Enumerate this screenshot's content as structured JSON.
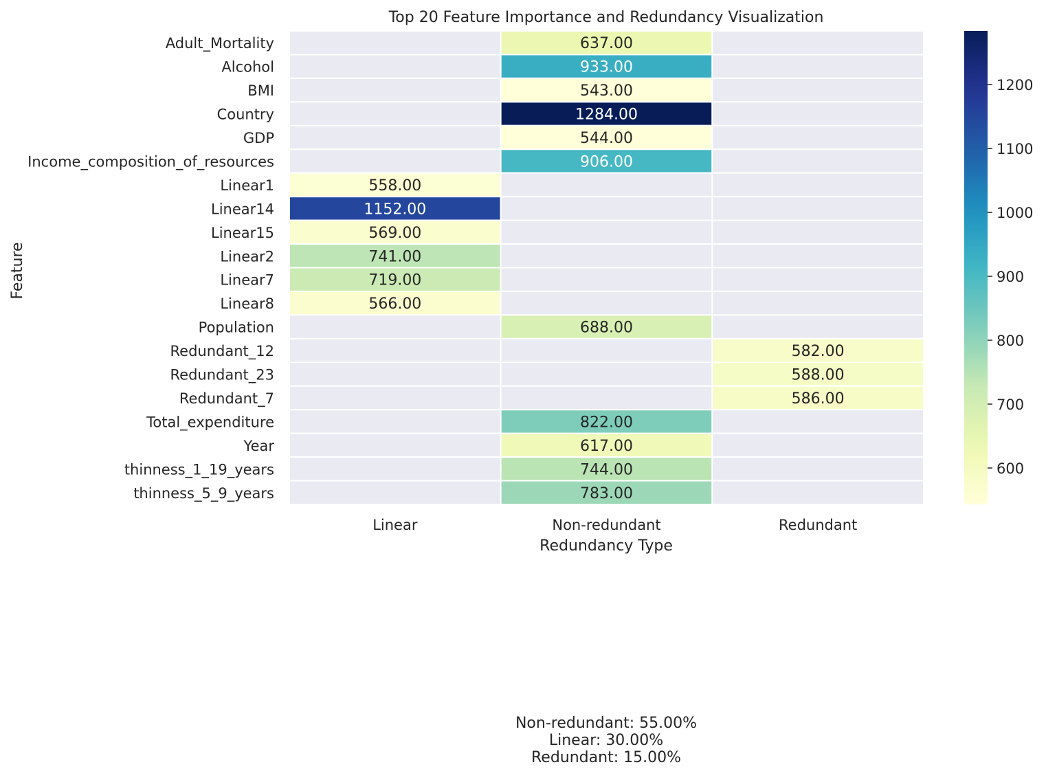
{
  "chart_data": {
    "type": "heatmap",
    "title": "Top 20 Feature Importance and Redundancy Visualization",
    "xlabel": "Redundancy Type",
    "ylabel": "Feature",
    "columns": [
      "Linear",
      "Non-redundant",
      "Redundant"
    ],
    "rows": [
      {
        "feature": "Adult_Mortality",
        "type": "Non-redundant",
        "value": 637.0
      },
      {
        "feature": "Alcohol",
        "type": "Non-redundant",
        "value": 933.0
      },
      {
        "feature": "BMI",
        "type": "Non-redundant",
        "value": 543.0
      },
      {
        "feature": "Country",
        "type": "Non-redundant",
        "value": 1284.0
      },
      {
        "feature": "GDP",
        "type": "Non-redundant",
        "value": 544.0
      },
      {
        "feature": "Income_composition_of_resources",
        "type": "Non-redundant",
        "value": 906.0
      },
      {
        "feature": "Linear1",
        "type": "Linear",
        "value": 558.0
      },
      {
        "feature": "Linear14",
        "type": "Linear",
        "value": 1152.0
      },
      {
        "feature": "Linear15",
        "type": "Linear",
        "value": 569.0
      },
      {
        "feature": "Linear2",
        "type": "Linear",
        "value": 741.0
      },
      {
        "feature": "Linear7",
        "type": "Linear",
        "value": 719.0
      },
      {
        "feature": "Linear8",
        "type": "Linear",
        "value": 566.0
      },
      {
        "feature": "Population",
        "type": "Non-redundant",
        "value": 688.0
      },
      {
        "feature": "Redundant_12",
        "type": "Redundant",
        "value": 582.0
      },
      {
        "feature": "Redundant_23",
        "type": "Redundant",
        "value": 588.0
      },
      {
        "feature": "Redundant_7",
        "type": "Redundant",
        "value": 586.0
      },
      {
        "feature": "Total_expenditure",
        "type": "Non-redundant",
        "value": 822.0
      },
      {
        "feature": "Year",
        "type": "Non-redundant",
        "value": 617.0
      },
      {
        "feature": "thinness_1_19_years",
        "type": "Non-redundant",
        "value": 744.0
      },
      {
        "feature": "thinness_5_9_years",
        "type": "Non-redundant",
        "value": 783.0
      }
    ],
    "colorbar": {
      "colormap": "YlGnBu",
      "range": [
        543,
        1284
      ],
      "ticks": [
        600,
        700,
        800,
        900,
        1000,
        1100,
        1200
      ]
    },
    "missing_cell_color": "#eaeaf2",
    "summary_lines": [
      "Non-redundant: 55.00%",
      "Linear: 30.00%",
      "Redundant: 15.00%"
    ]
  }
}
